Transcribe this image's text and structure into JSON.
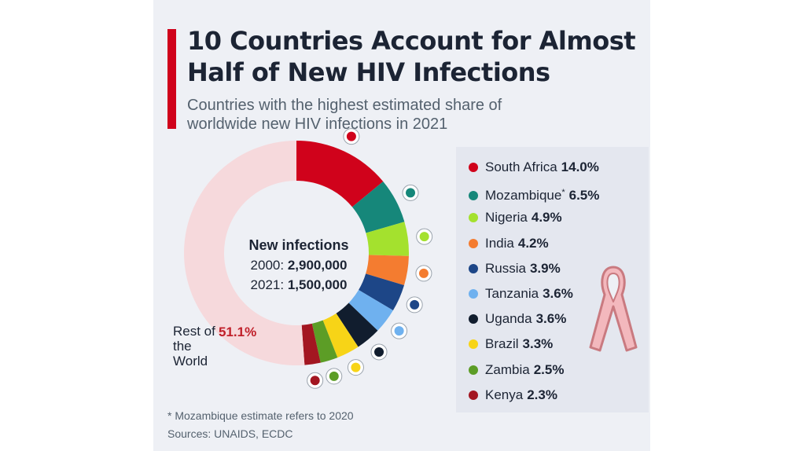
{
  "header": {
    "title": "10 Countries Account for Almost Half of New HIV Infections",
    "subtitle": "Countries with the highest estimated share of worldwide new HIV infections in 2021"
  },
  "center": {
    "heading": "New infections",
    "line1_label": "2000:",
    "line1_value": "2,900,000",
    "line2_label": "2021:",
    "line2_value": "1,500,000"
  },
  "rest": {
    "label": "Rest of the World",
    "value": "51.1%",
    "color": "#f6d9dc"
  },
  "chart_data": {
    "type": "pie",
    "title": "10 Countries Account for Almost Half of New HIV Infections",
    "subtitle": "Countries with the highest estimated share of worldwide new HIV infections in 2021",
    "unit": "%",
    "categories": [
      "South Africa",
      "Mozambique",
      "Nigeria",
      "India",
      "Russia",
      "Tanzania",
      "Uganda",
      "Brazil",
      "Zambia",
      "Kenya",
      "Rest of the World"
    ],
    "values": [
      14.0,
      6.5,
      4.9,
      4.2,
      3.9,
      3.6,
      3.6,
      3.3,
      2.5,
      2.3,
      51.1
    ],
    "colors": [
      "#d0021b",
      "#16877a",
      "#a4e12e",
      "#f47c30",
      "#1d4687",
      "#6fb1ef",
      "#111d2e",
      "#f7d417",
      "#5c9d26",
      "#a31621",
      "#f6d9dc"
    ],
    "legend_placement": "right"
  },
  "legend": [
    {
      "name": "South Africa",
      "value": "14.0%",
      "color": "#d0021b",
      "note": "",
      "flag": "south-africa-flag-icon"
    },
    {
      "name": "Mozambique",
      "value": "6.5%",
      "color": "#16877a",
      "note": "*",
      "flag": "mozambique-flag-icon"
    },
    {
      "name": "Nigeria",
      "value": "4.9%",
      "color": "#a4e12e",
      "note": "",
      "flag": "nigeria-flag-icon"
    },
    {
      "name": "India",
      "value": "4.2%",
      "color": "#f47c30",
      "note": "",
      "flag": "india-flag-icon"
    },
    {
      "name": "Russia",
      "value": "3.9%",
      "color": "#1d4687",
      "note": "",
      "flag": "russia-flag-icon"
    },
    {
      "name": "Tanzania",
      "value": "3.6%",
      "color": "#6fb1ef",
      "note": "",
      "flag": "tanzania-flag-icon"
    },
    {
      "name": "Uganda",
      "value": "3.6%",
      "color": "#111d2e",
      "note": "",
      "flag": "uganda-flag-icon"
    },
    {
      "name": "Brazil",
      "value": "3.3%",
      "color": "#f7d417",
      "note": "",
      "flag": "brazil-flag-icon"
    },
    {
      "name": "Zambia",
      "value": "2.5%",
      "color": "#5c9d26",
      "note": "",
      "flag": "zambia-flag-icon"
    },
    {
      "name": "Kenya",
      "value": "2.3%",
      "color": "#a31621",
      "note": "",
      "flag": "kenya-flag-icon"
    }
  ],
  "footer": {
    "footnote": "* Mozambique estimate refers to 2020",
    "sources": "Sources: UNAIDS, ECDC"
  },
  "decor": {
    "ribbon_icon": "awareness-ribbon-icon",
    "accent": "#d0021b"
  }
}
